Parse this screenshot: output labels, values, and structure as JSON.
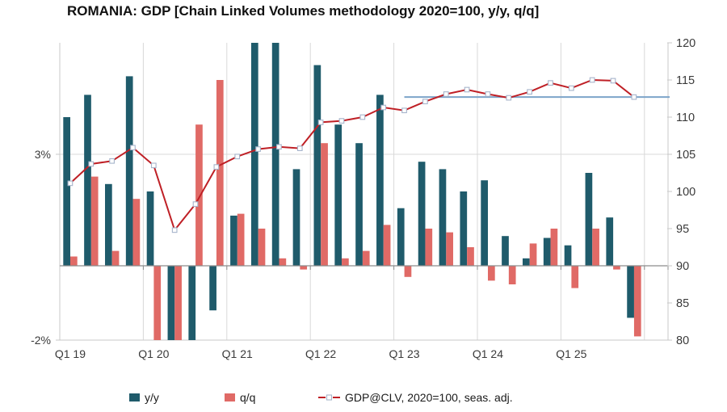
{
  "title": "ROMANIA: GDP [Chain Linked Volumes methodology 2020=100, y/y, q/q]",
  "colors": {
    "yoy_bar": "#1f5b6b",
    "qoq_bar": "#e06a66",
    "gdp_line": "#bf2026",
    "reference_line": "#7da4c9",
    "marker_fill": "#ffffff",
    "marker_stroke": "#a6b4cb",
    "gridline": "#d9d9d9",
    "plot_border": "#c9c9c9",
    "zero_axis": "#8c8c8c",
    "axis_text": "#3a3a3a",
    "title_text": "#111111"
  },
  "chart_data": {
    "type": "bar",
    "title": "ROMANIA: GDP [Chain Linked Volumes methodology 2020=100, y/y, q/q]",
    "categories": [
      "Q1 19",
      "Q2 19",
      "Q3 19",
      "Q4 19",
      "Q1 20",
      "Q2 20",
      "Q3 20",
      "Q4 20",
      "Q1 21",
      "Q2 21",
      "Q3 21",
      "Q4 21",
      "Q1 22",
      "Q2 22",
      "Q3 22",
      "Q4 22",
      "Q1 23",
      "Q2 23",
      "Q3 23",
      "Q4 23",
      "Q1 24",
      "Q2 24",
      "Q3 24",
      "Q4 24",
      "Q1 25",
      "Q2 25",
      "Q3 25",
      "Q4 25"
    ],
    "series": [
      {
        "name": "y/y",
        "type": "bar",
        "axis": "left_percent",
        "values": [
          4.0,
          4.6,
          2.2,
          5.1,
          2.0,
          -2.0,
          -2.0,
          -1.2,
          1.35,
          6.05,
          6.05,
          2.6,
          5.4,
          3.8,
          3.3,
          4.6,
          1.55,
          2.8,
          2.6,
          2.0,
          2.3,
          0.8,
          0.2,
          0.75,
          0.55,
          2.5,
          1.3,
          -1.4
        ]
      },
      {
        "name": "q/q",
        "type": "bar",
        "axis": "left_percent",
        "values": [
          0.25,
          2.4,
          0.4,
          1.8,
          -2.0,
          -2.0,
          3.8,
          5.0,
          1.4,
          1.0,
          0.2,
          -0.1,
          3.3,
          0.2,
          0.4,
          1.1,
          -0.3,
          1.0,
          0.9,
          0.5,
          -0.4,
          -0.5,
          0.6,
          1.0,
          -0.6,
          1.0,
          -0.1,
          -1.9
        ]
      },
      {
        "name": "GDP@CLV, 2020=100, seas. adj.",
        "type": "line",
        "axis": "right_index",
        "values": [
          101.1,
          103.7,
          104.1,
          105.9,
          103.5,
          94.8,
          98.3,
          103.3,
          104.7,
          105.7,
          106.0,
          105.8,
          109.3,
          109.5,
          110.0,
          111.3,
          110.9,
          112.1,
          113.1,
          113.7,
          113.1,
          112.6,
          113.4,
          114.6,
          113.9,
          115.0,
          114.9,
          112.7
        ]
      }
    ],
    "reference_line": {
      "value": 112.7,
      "axis": "right_index",
      "from_category": "Q1 23",
      "to": "plot_right_edge"
    },
    "left_axis": {
      "unit": "percent",
      "min": -2,
      "max": 6,
      "ticks": [
        {
          "label": "3%",
          "value": 3
        },
        {
          "label": "-2%",
          "value": -2
        }
      ]
    },
    "right_axis": {
      "unit": "index 2020=100",
      "min": 80,
      "max": 120,
      "step": 5,
      "ticks": [
        120,
        115,
        110,
        105,
        100,
        95,
        90,
        85,
        80
      ]
    },
    "x_axis": {
      "tick_labels": [
        "Q1 19",
        "Q1 20",
        "Q1 21",
        "Q1 22",
        "Q1 23",
        "Q1 24",
        "Q1 25"
      ]
    },
    "legend_position": "bottom",
    "grid": "vertical-yearly and 3% horizontal"
  },
  "legend": {
    "items": [
      {
        "label": "y/y",
        "swatch": "square"
      },
      {
        "label": "q/q",
        "swatch": "square"
      },
      {
        "label": "GDP@CLV, 2020=100, seas. adj.",
        "swatch": "line-marker"
      }
    ]
  }
}
